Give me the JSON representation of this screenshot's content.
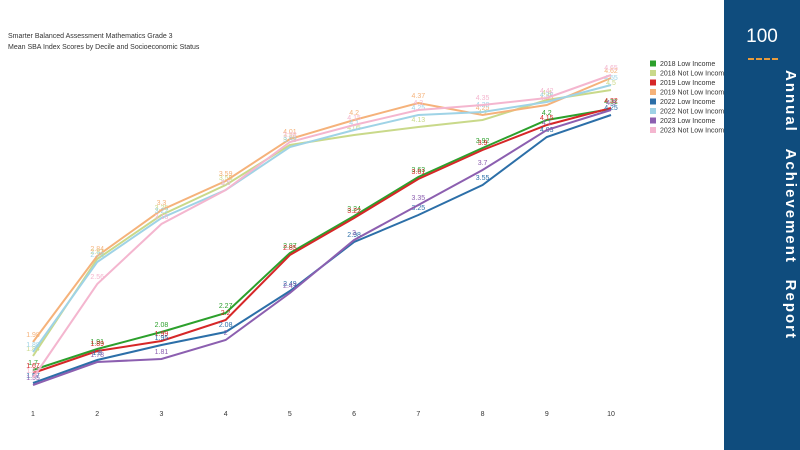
{
  "side_panel": {
    "number": "100",
    "words": [
      "Annual",
      "Achievement",
      "Report"
    ]
  },
  "chart_data": {
    "type": "line",
    "title": "Smarter Balanced Assessment Mathematics Grade 3",
    "subtitle": "Mean SBA Index Scores by Decile and Socioeconomic Status",
    "categories": [
      "1",
      "2",
      "3",
      "4",
      "5",
      "6",
      "7",
      "8",
      "9",
      "10"
    ],
    "ylim": [
      1.4,
      4.8
    ],
    "series": [
      {
        "name": "2018 Low Income",
        "color": "#2ca02c",
        "values": [
          1.7,
          1.91,
          2.08,
          2.27,
          2.87,
          3.24,
          3.63,
          3.92,
          4.2,
          4.31
        ]
      },
      {
        "name": "2018 Not Low Income",
        "color": "#c9d98a",
        "values": [
          1.84,
          2.81,
          3.25,
          3.55,
          3.95,
          4.05,
          4.13,
          4.2,
          4.4,
          4.5
        ]
      },
      {
        "name": "2019 Low Income",
        "color": "#d62728",
        "values": [
          1.67,
          1.89,
          1.99,
          2.2,
          2.85,
          3.22,
          3.61,
          3.9,
          4.15,
          4.32
        ]
      },
      {
        "name": "2019 Not Low Income",
        "color": "#f5b27a",
        "values": [
          1.98,
          2.84,
          3.3,
          3.59,
          4.01,
          4.2,
          4.37,
          4.25,
          4.35,
          4.62
        ]
      },
      {
        "name": "2022 Low Income",
        "color": "#2c6fa8",
        "values": [
          1.57,
          1.8,
          1.95,
          2.08,
          2.49,
          2.98,
          3.25,
          3.55,
          4.03,
          4.25
        ]
      },
      {
        "name": "2022 Not Low Income",
        "color": "#9fd3e6",
        "values": [
          1.88,
          2.78,
          3.22,
          3.5,
          3.93,
          4.1,
          4.25,
          4.28,
          4.38,
          4.55
        ]
      },
      {
        "name": "2023 Low Income",
        "color": "#8c5fb0",
        "values": [
          1.55,
          1.78,
          1.81,
          2.0,
          2.47,
          3.0,
          3.35,
          3.7,
          4.1,
          4.3
        ]
      },
      {
        "name": "2023 Not Low Income",
        "color": "#f4b6cf",
        "values": [
          1.62,
          2.56,
          3.16,
          3.5,
          3.98,
          4.15,
          4.3,
          4.35,
          4.42,
          4.65
        ]
      }
    ]
  }
}
